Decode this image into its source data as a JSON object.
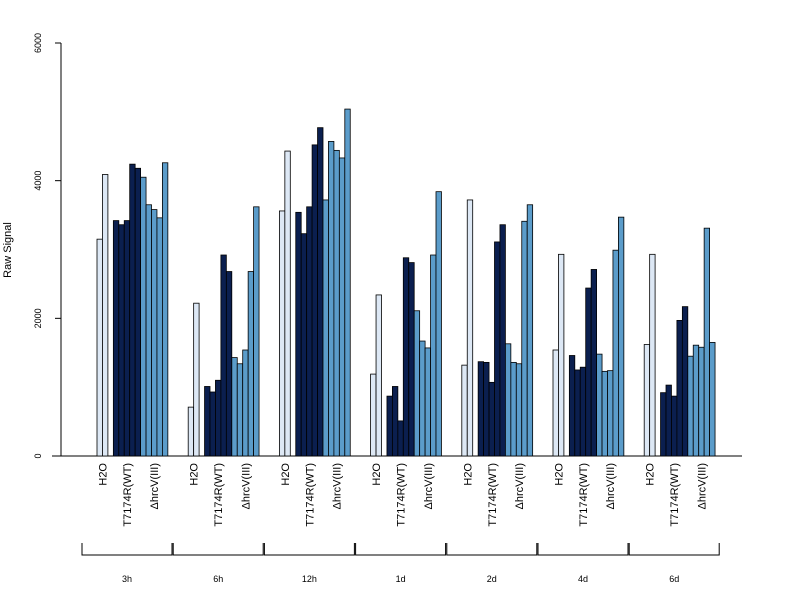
{
  "chart_data": {
    "type": "bar",
    "title": "",
    "xlabel": "",
    "ylabel": "Raw Signal",
    "ylim": [
      0,
      6000
    ],
    "yticks": [
      0,
      2000,
      4000,
      6000
    ],
    "ytick_labels": [
      "0",
      "2000",
      "4000",
      "6000"
    ],
    "grid": false,
    "legend": "none",
    "colors": {
      "H2O": "#dde8f5",
      "T7174R(WT)": "#0b1f4f",
      "ΔhrcV(III)": "#5b9cca",
      "edge": "#000000",
      "axis": "#000000"
    },
    "time_points": [
      "3h",
      "6h",
      "12h",
      "1d",
      "2d",
      "4d",
      "6d"
    ],
    "groups": [
      "H2O",
      "T7174R(WT)",
      "ΔhrcV(III)"
    ],
    "data": [
      {
        "time": "3h",
        "H2O": [
          3150,
          4090
        ],
        "T7174R(WT)": [
          3420,
          3360,
          3420,
          4240,
          4180
        ],
        "ΔhrcV(III)": [
          4050,
          3650,
          3580,
          3460,
          4260
        ]
      },
      {
        "time": "6h",
        "H2O": [
          710,
          2220
        ],
        "T7174R(WT)": [
          1010,
          930,
          1100,
          2920,
          2680
        ],
        "ΔhrcV(III)": [
          1430,
          1340,
          1540,
          2680,
          3620
        ]
      },
      {
        "time": "12h",
        "H2O": [
          3560,
          4430
        ],
        "T7174R(WT)": [
          3540,
          3230,
          3620,
          4520,
          4770
        ],
        "ΔhrcV(III)": [
          3720,
          4570,
          4440,
          4330,
          5040
        ]
      },
      {
        "time": "1d",
        "H2O": [
          1190,
          2340
        ],
        "T7174R(WT)": [
          870,
          1010,
          510,
          2880,
          2810
        ],
        "ΔhrcV(III)": [
          2110,
          1670,
          1570,
          2920,
          3840
        ]
      },
      {
        "time": "2d",
        "H2O": [
          1320,
          3720
        ],
        "T7174R(WT)": [
          1370,
          1360,
          1070,
          3110,
          3360
        ],
        "ΔhrcV(III)": [
          1630,
          1360,
          1340,
          3410,
          3650
        ]
      },
      {
        "time": "4d",
        "H2O": [
          1540,
          2930
        ],
        "T7174R(WT)": [
          1460,
          1250,
          1290,
          2440,
          2710
        ],
        "ΔhrcV(III)": [
          1480,
          1230,
          1240,
          2990,
          3470
        ]
      },
      {
        "time": "6d",
        "H2O": [
          1620,
          2930
        ],
        "T7174R(WT)": [
          920,
          1030,
          870,
          1970,
          2170
        ],
        "ΔhrcV(III)": [
          1450,
          1610,
          1580,
          3310,
          1650
        ]
      }
    ]
  }
}
